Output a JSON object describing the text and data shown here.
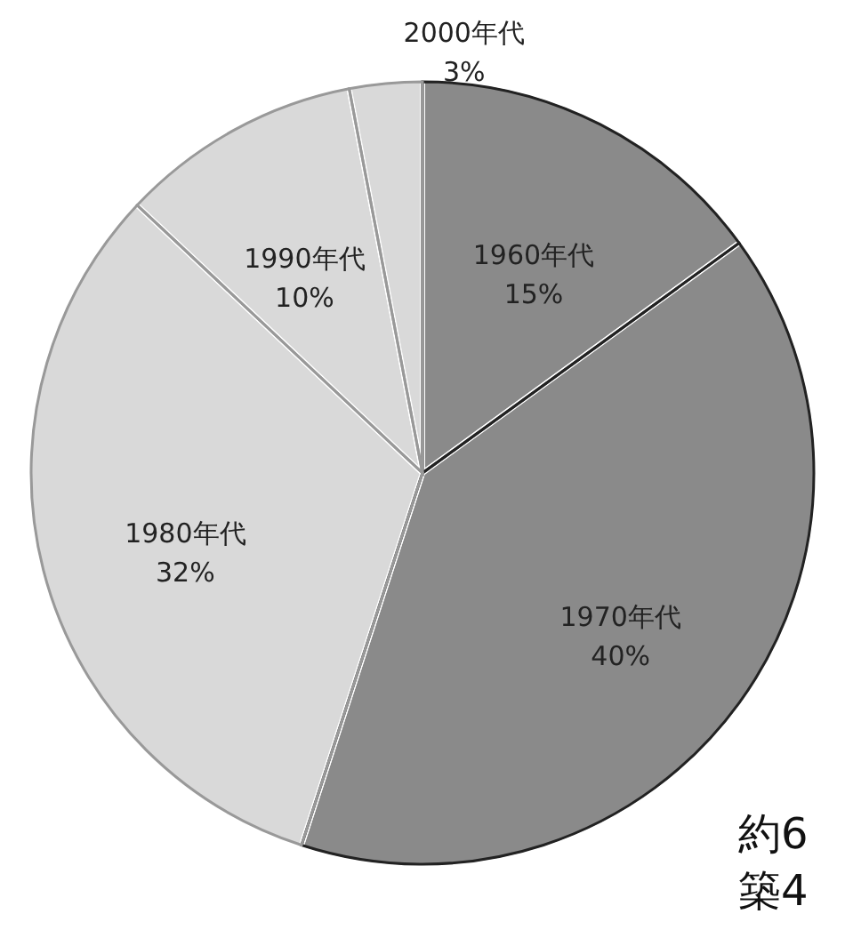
{
  "chart_data": {
    "type": "pie",
    "categories": [
      "1960年代",
      "1970年代",
      "1980年代",
      "1990年代",
      "2000年代"
    ],
    "values": [
      15,
      40,
      32,
      10,
      3
    ],
    "value_labels": [
      "15%",
      "40%",
      "32%",
      "10%",
      "3%"
    ],
    "colors": [
      "#8a8a8a",
      "#8a8a8a",
      "#d9d9d9",
      "#d9d9d9",
      "#d9d9d9"
    ],
    "annotations": [
      "約6",
      "築4"
    ]
  }
}
